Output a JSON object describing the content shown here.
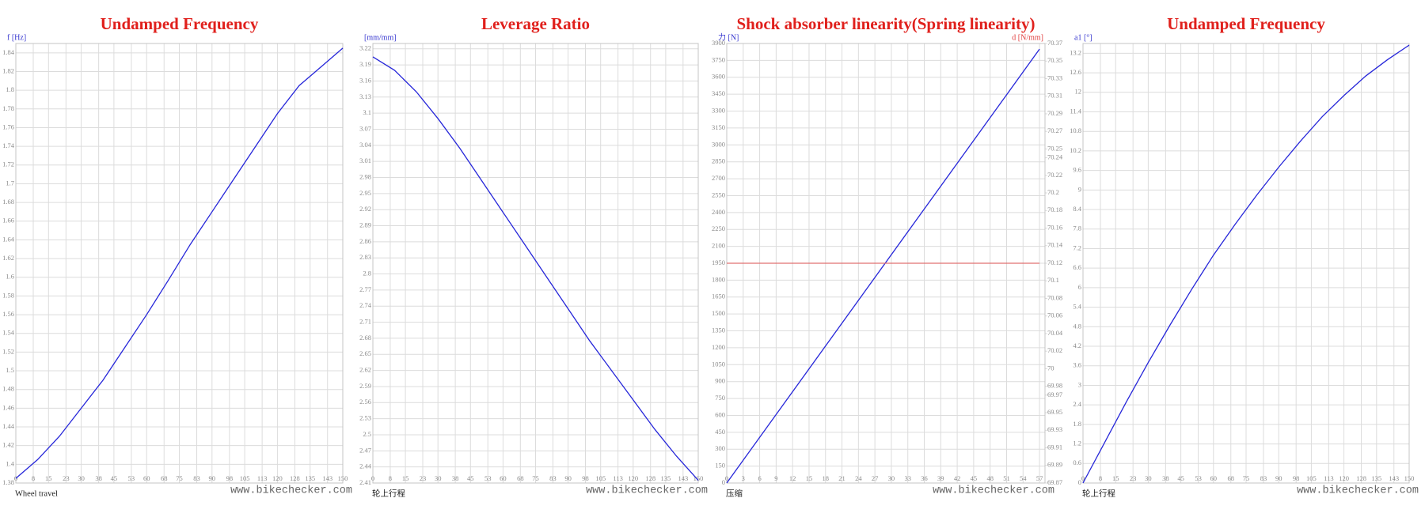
{
  "chart_data": [
    {
      "type": "line",
      "title": "Undamped Frequency",
      "y_label": "f [Hz]",
      "x_label": "Wheel travel",
      "watermark": "www.bikechecker.com",
      "x": [
        0,
        10,
        20,
        30,
        40,
        50,
        60,
        70,
        80,
        90,
        100,
        110,
        120,
        130,
        140,
        150
      ],
      "values": [
        1.385,
        1.405,
        1.43,
        1.46,
        1.49,
        1.525,
        1.56,
        1.597,
        1.635,
        1.67,
        1.705,
        1.74,
        1.775,
        1.805,
        1.825,
        1.845
      ],
      "color": "#2626d9",
      "xlim": [
        0,
        150
      ],
      "xticks": [
        0,
        8,
        15,
        23,
        30,
        38,
        45,
        53,
        60,
        68,
        75,
        83,
        90,
        98,
        105,
        113,
        120,
        128,
        135,
        143,
        150
      ],
      "ylim": [
        1.38,
        1.85
      ],
      "yticks": [
        1.38,
        1.4,
        1.42,
        1.44,
        1.46,
        1.48,
        1.5,
        1.52,
        1.54,
        1.56,
        1.58,
        1.6,
        1.62,
        1.64,
        1.66,
        1.68,
        1.7,
        1.72,
        1.74,
        1.76,
        1.78,
        1.8,
        1.82,
        1.84
      ],
      "grid": true
    },
    {
      "type": "line",
      "title": "Leverage Ratio",
      "y_label": "[mm/mm]",
      "x_label": "轮上行程",
      "watermark": "www.bikechecker.com",
      "x": [
        0,
        10,
        20,
        30,
        40,
        50,
        60,
        70,
        80,
        90,
        100,
        110,
        120,
        130,
        140,
        150
      ],
      "values": [
        3.205,
        3.18,
        3.14,
        3.09,
        3.035,
        2.975,
        2.915,
        2.855,
        2.795,
        2.735,
        2.675,
        2.62,
        2.565,
        2.51,
        2.46,
        2.415
      ],
      "color": "#2626d9",
      "xlim": [
        0,
        150
      ],
      "xticks": [
        0,
        8,
        15,
        23,
        30,
        38,
        45,
        53,
        60,
        68,
        75,
        83,
        90,
        98,
        105,
        113,
        120,
        128,
        135,
        143,
        150
      ],
      "ylim": [
        2.41,
        3.23
      ],
      "yticks": [
        2.41,
        2.44,
        2.47,
        2.5,
        2.53,
        2.56,
        2.59,
        2.62,
        2.65,
        2.68,
        2.71,
        2.74,
        2.77,
        2.8,
        2.83,
        2.86,
        2.89,
        2.92,
        2.95,
        2.98,
        3.01,
        3.04,
        3.07,
        3.1,
        3.13,
        3.16,
        3.19,
        3.22
      ],
      "grid": true
    },
    {
      "type": "line",
      "title": "Shock absorber linearity(Spring linearity)",
      "y_label": "力 [N]",
      "y2_label": "d [N/mm]",
      "x_label": "压缩",
      "watermark": "www.bikechecker.com",
      "x": [
        0,
        57
      ],
      "series": [
        {
          "color": "#2626d9",
          "values": [
            0,
            3850
          ]
        },
        {
          "color": "#e07070",
          "axis": "y2",
          "values": [
            70.12,
            70.12
          ]
        }
      ],
      "xlim": [
        0,
        58
      ],
      "xticks": [
        0,
        3,
        6,
        9,
        12,
        15,
        18,
        21,
        24,
        27,
        30,
        33,
        36,
        39,
        42,
        45,
        48,
        51,
        54,
        57
      ],
      "ylim": [
        0,
        3900
      ],
      "yticks": [
        0,
        150,
        300,
        450,
        600,
        750,
        900,
        1050,
        1200,
        1350,
        1500,
        1650,
        1800,
        1950,
        2100,
        2250,
        2400,
        2550,
        2700,
        2850,
        3000,
        3150,
        3300,
        3450,
        3600,
        3750,
        3900
      ],
      "y2lim": [
        69.87,
        70.37
      ],
      "y2ticks": [
        69.87,
        69.89,
        69.91,
        69.93,
        69.95,
        69.97,
        69.98,
        70,
        70.02,
        70.04,
        70.06,
        70.08,
        70.1,
        70.12,
        70.14,
        70.16,
        70.18,
        70.2,
        70.22,
        70.24,
        70.25,
        70.27,
        70.29,
        70.31,
        70.33,
        70.35,
        70.37
      ],
      "grid": true
    },
    {
      "type": "line",
      "title": "Undamped Frequency",
      "y_label": "a1 [°]",
      "x_label": "轮上行程",
      "watermark": "www.bikechecker.com",
      "x": [
        0,
        10,
        20,
        30,
        40,
        50,
        60,
        70,
        80,
        90,
        100,
        110,
        120,
        130,
        140,
        150
      ],
      "values": [
        0,
        1.25,
        2.5,
        3.7,
        4.85,
        5.95,
        7,
        7.95,
        8.85,
        9.7,
        10.5,
        11.25,
        11.9,
        12.5,
        13,
        13.45
      ],
      "color": "#2626d9",
      "xlim": [
        0,
        150
      ],
      "xticks": [
        0,
        8,
        15,
        23,
        30,
        38,
        45,
        53,
        60,
        68,
        75,
        83,
        90,
        98,
        105,
        113,
        120,
        128,
        135,
        143,
        150
      ],
      "ylim": [
        0,
        13.5
      ],
      "yticks": [
        0,
        0.6,
        1.2,
        1.8,
        2.4,
        3,
        3.6,
        4.2,
        4.8,
        5.4,
        6,
        6.6,
        7.2,
        7.8,
        8.4,
        9,
        9.6,
        10.2,
        10.8,
        11.4,
        12,
        12.6,
        13.2
      ],
      "grid": true
    }
  ]
}
